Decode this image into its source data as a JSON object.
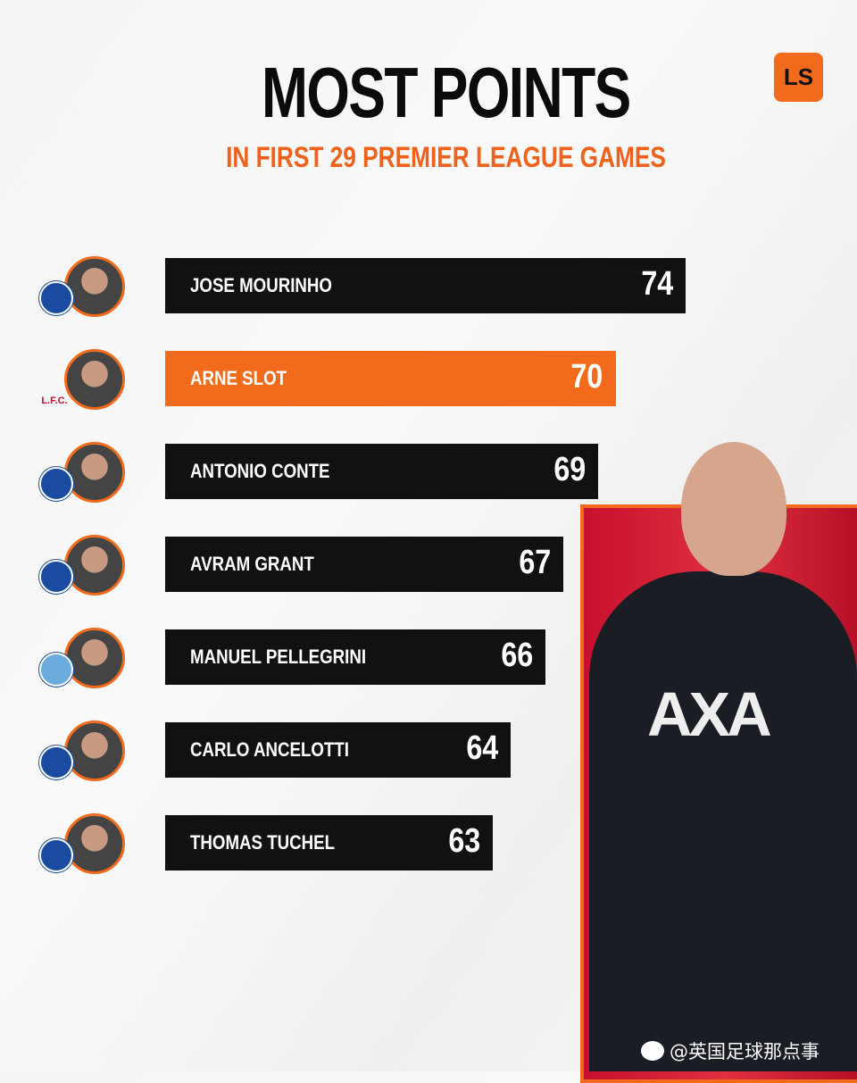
{
  "logo_text": "LS",
  "watermark": "@英国足球那点事",
  "colors": {
    "accent": "#f26a1b",
    "bar": "#111111"
  },
  "chart_data": {
    "type": "bar",
    "orientation": "horizontal",
    "title": "MOST POINTS",
    "subtitle": "IN FIRST 29 PREMIER LEAGUE GAMES",
    "categories": [
      "JOSE MOURINHO",
      "ARNE SLOT",
      "ANTONIO CONTE",
      "AVRAM GRANT",
      "MANUEL PELLEGRINI",
      "CARLO ANCELOTTI",
      "THOMAS TUCHEL"
    ],
    "values": [
      74,
      70,
      69,
      67,
      66,
      64,
      63
    ],
    "clubs": [
      "chelsea",
      "liverpool",
      "chelsea",
      "chelsea",
      "man-city",
      "chelsea",
      "chelsea"
    ],
    "highlight": "ARNE SLOT"
  }
}
